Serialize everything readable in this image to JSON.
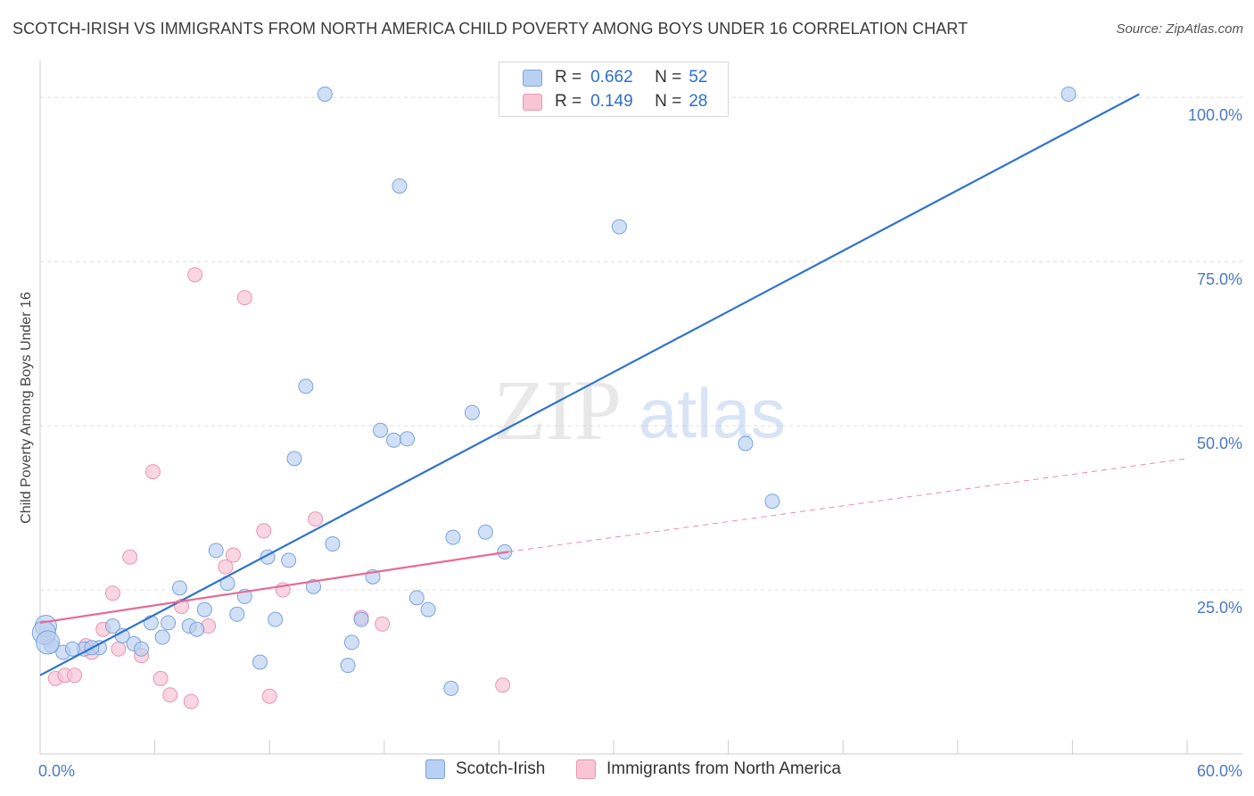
{
  "header": {
    "title": "SCOTCH-IRISH VS IMMIGRANTS FROM NORTH AMERICA CHILD POVERTY AMONG BOYS UNDER 16 CORRELATION CHART",
    "source": "Source: ZipAtlas.com"
  },
  "watermark": {
    "zip": "ZIP",
    "atlas": "atlas"
  },
  "legend": {
    "rows": [
      {
        "r_label": "R =",
        "r_value": "0.662",
        "n_label": "N =",
        "n_value": "52"
      },
      {
        "r_label": "R =",
        "r_value": "0.149",
        "n_label": "N =",
        "n_value": "28"
      }
    ]
  },
  "colors": {
    "blue_fill": "#b8d0f1",
    "blue_stroke": "#7aa2dc",
    "blue_line": "#2f72d0",
    "pink_fill": "#f7c5d4",
    "pink_stroke": "#e995b1",
    "pink_line": "#e86a93",
    "grid": "#dddddd",
    "tick_text": "#4a78c8"
  },
  "chart_data": {
    "type": "scatter",
    "title": "SCOTCH-IRISH VS IMMIGRANTS FROM NORTH AMERICA CHILD POVERTY AMONG BOYS UNDER 16 CORRELATION CHART",
    "xlabel": "",
    "ylabel": "Child Poverty Among Boys Under 16",
    "xlim": [
      0,
      60
    ],
    "ylim": [
      0,
      106
    ],
    "x_tick_labels": [
      "0.0%",
      "60.0%"
    ],
    "y_ticks": [
      25,
      50,
      75,
      100
    ],
    "y_tick_labels": [
      "25.0%",
      "50.0%",
      "75.0%",
      "100.0%"
    ],
    "grid": true,
    "legend_position": "top-center",
    "series": [
      {
        "name": "Scotch-Irish",
        "points": [
          [
            0.3,
            19.5
          ],
          [
            0.6,
            16.5
          ],
          [
            1.2,
            15.5
          ],
          [
            2.3,
            16.0
          ],
          [
            3.1,
            16.2
          ],
          [
            3.8,
            19.5
          ],
          [
            4.3,
            18.0
          ],
          [
            4.9,
            16.8
          ],
          [
            5.3,
            16.0
          ],
          [
            5.8,
            20.0
          ],
          [
            6.4,
            17.8
          ],
          [
            6.7,
            20.0
          ],
          [
            7.3,
            25.3
          ],
          [
            7.8,
            19.5
          ],
          [
            8.2,
            19.0
          ],
          [
            8.6,
            22.0
          ],
          [
            9.2,
            31.0
          ],
          [
            9.8,
            26.0
          ],
          [
            10.3,
            21.3
          ],
          [
            10.7,
            24.0
          ],
          [
            11.5,
            14.0
          ],
          [
            11.9,
            30.0
          ],
          [
            12.3,
            20.5
          ],
          [
            13.0,
            29.5
          ],
          [
            13.3,
            45.0
          ],
          [
            13.9,
            56.0
          ],
          [
            14.3,
            25.5
          ],
          [
            14.9,
            100.5
          ],
          [
            15.3,
            32.0
          ],
          [
            16.1,
            13.5
          ],
          [
            16.3,
            17.0
          ],
          [
            16.8,
            20.5
          ],
          [
            17.4,
            27.0
          ],
          [
            17.8,
            49.3
          ],
          [
            18.5,
            47.8
          ],
          [
            19.2,
            48.0
          ],
          [
            18.8,
            86.5
          ],
          [
            19.7,
            23.8
          ],
          [
            20.3,
            22.0
          ],
          [
            21.5,
            10.0
          ],
          [
            21.6,
            33.0
          ],
          [
            22.6,
            52.0
          ],
          [
            23.3,
            33.8
          ],
          [
            24.3,
            30.8
          ],
          [
            30.3,
            80.3
          ],
          [
            36.9,
            47.3
          ],
          [
            38.3,
            38.5
          ],
          [
            53.8,
            100.5
          ],
          [
            1.7,
            16.0
          ],
          [
            2.7,
            16.2
          ],
          [
            0.2,
            18.5
          ],
          [
            0.4,
            17.0
          ]
        ],
        "regression": {
          "x_start": 0,
          "y_start": 12.0,
          "x_end": 57.5,
          "y_end": 100.5
        }
      },
      {
        "name": "Immigrants from North America",
        "points": [
          [
            0.4,
            17.5
          ],
          [
            0.8,
            11.5
          ],
          [
            1.3,
            12.0
          ],
          [
            1.8,
            12.0
          ],
          [
            2.4,
            16.5
          ],
          [
            2.7,
            15.5
          ],
          [
            3.3,
            19.0
          ],
          [
            3.8,
            24.5
          ],
          [
            4.1,
            16.0
          ],
          [
            4.7,
            30.0
          ],
          [
            5.3,
            15.0
          ],
          [
            5.9,
            43.0
          ],
          [
            6.3,
            11.5
          ],
          [
            6.8,
            9.0
          ],
          [
            7.4,
            22.5
          ],
          [
            7.9,
            8.0
          ],
          [
            8.1,
            73.0
          ],
          [
            8.8,
            19.5
          ],
          [
            9.7,
            28.5
          ],
          [
            10.1,
            30.3
          ],
          [
            10.7,
            69.5
          ],
          [
            11.7,
            34.0
          ],
          [
            12.0,
            8.8
          ],
          [
            12.7,
            25.0
          ],
          [
            14.4,
            35.8
          ],
          [
            16.8,
            20.8
          ],
          [
            17.9,
            19.8
          ],
          [
            24.2,
            10.5
          ]
        ],
        "regression": {
          "x_start": 0,
          "y_start": 20.0,
          "x_end": 24.5,
          "y_end": 30.8
        },
        "regression_extension": {
          "x_start": 24.5,
          "y_start": 30.8,
          "x_end": 60,
          "y_end": 45.0
        }
      }
    ]
  },
  "bottom_legend": {
    "items": [
      {
        "label": "Scotch-Irish"
      },
      {
        "label": "Immigrants from North America"
      }
    ]
  }
}
